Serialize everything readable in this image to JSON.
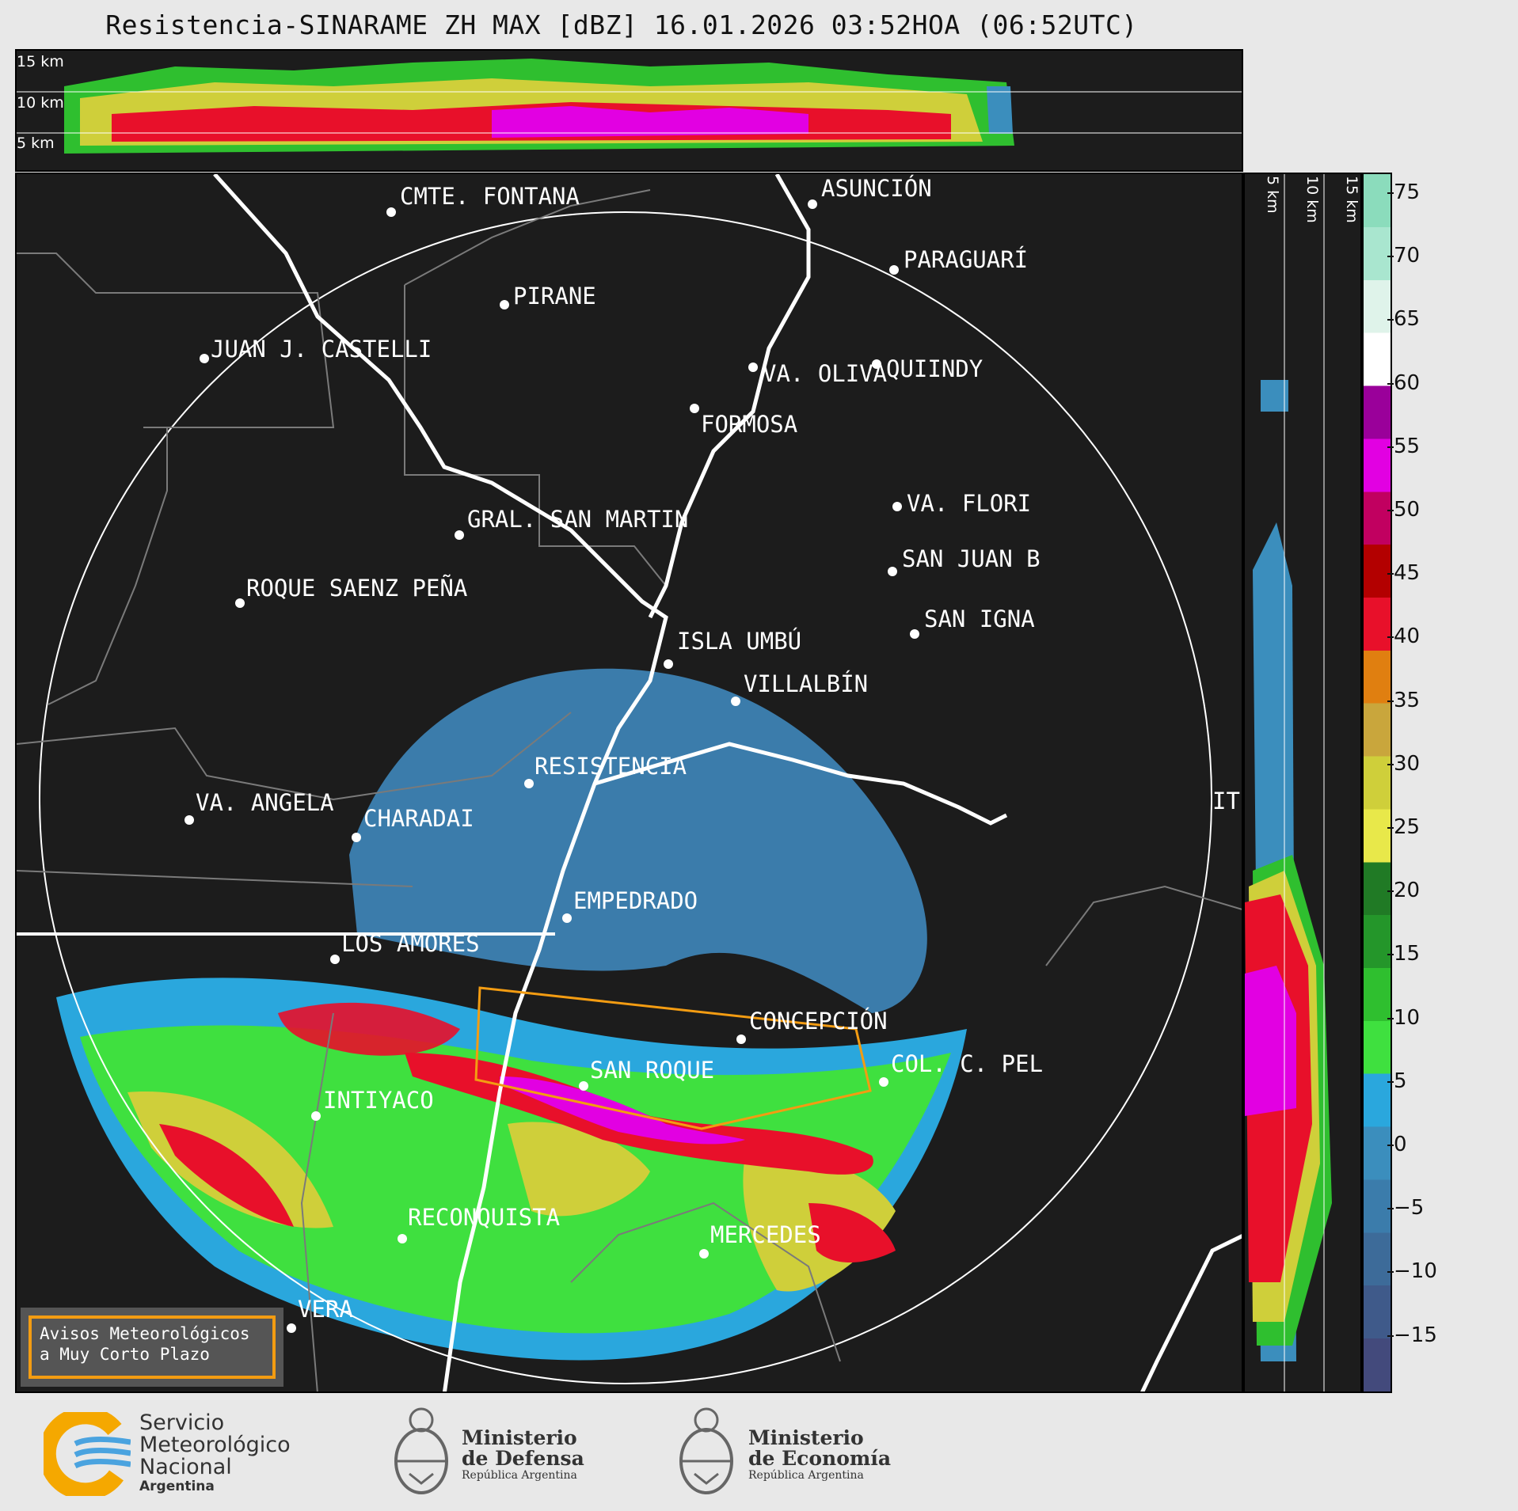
{
  "title": "Resistencia-SINARAME ZH MAX [dBZ] 16.01.2026 03:52HOA (06:52UTC)",
  "top_section": {
    "labels": [
      "15 km",
      "10 km",
      "5 km"
    ]
  },
  "side_section": {
    "labels": [
      "5 km",
      "10 km",
      "15 km"
    ]
  },
  "colorbar": {
    "ticks": [
      "75",
      "70",
      "65",
      "60",
      "55",
      "50",
      "45",
      "40",
      "35",
      "30",
      "25",
      "20",
      "15",
      "10",
      "5",
      "0",
      "−5",
      "−10",
      "−15"
    ],
    "colors": [
      "#434a7c",
      "#3f5a8a",
      "#3d6b99",
      "#3b7cab",
      "#3b8ebd",
      "#2aa7dd",
      "#3fe03f",
      "#2fbf2f",
      "#24962a",
      "#207a25",
      "#e8e84a",
      "#cfcf3a",
      "#c9a63c",
      "#e07f10",
      "#e8102a",
      "#b30000",
      "#c10060",
      "#e200e2",
      "#9a009a",
      "#ffffff",
      "#dff3ea",
      "#a9e6cf",
      "#8bdcbc"
    ],
    "palette_name": "dBZ reflectivity"
  },
  "cities": [
    {
      "name": "CMTE. FONTANA"
    },
    {
      "name": "ASUNCIÓN"
    },
    {
      "name": "PARAGUARÍ"
    },
    {
      "name": "PIRANE"
    },
    {
      "name": "JUAN J. CASTELLI"
    },
    {
      "name": "VA. OLIVA"
    },
    {
      "name": "QUIINDY"
    },
    {
      "name": "FORMOSA"
    },
    {
      "name": "VA. FLORI"
    },
    {
      "name": "GRAL. SAN MARTIN"
    },
    {
      "name": "SAN JUAN B"
    },
    {
      "name": "ROQUE SAENZ PEÑA"
    },
    {
      "name": "SAN IGNA"
    },
    {
      "name": "ISLA UMBÚ"
    },
    {
      "name": "VILLALBÍN"
    },
    {
      "name": "RESISTENCIA"
    },
    {
      "name": "IT"
    },
    {
      "name": "VA. ANGELA"
    },
    {
      "name": "CHARADAI"
    },
    {
      "name": "EMPEDRADO"
    },
    {
      "name": "LOS AMORES"
    },
    {
      "name": "CONCEPCIÓN"
    },
    {
      "name": "COL. C. PEL"
    },
    {
      "name": "SAN ROQUE"
    },
    {
      "name": "INTIYACO"
    },
    {
      "name": "RECONQUISTA"
    },
    {
      "name": "MERCEDES"
    },
    {
      "name": "VERA"
    }
  ],
  "warning_box": {
    "line1": "Avisos Meteorológicos",
    "line2": "a Muy Corto Plazo"
  },
  "footer": {
    "smn_line1": "Servicio",
    "smn_line2": "Meteorológico",
    "smn_line3": "Nacional",
    "smn_line4": "Argentina",
    "def_line1": "Ministerio",
    "def_line2": "de Defensa",
    "def_line3": "República Argentina",
    "eco_line1": "Ministerio",
    "eco_line2": "de Economía",
    "eco_line3": "República Argentina"
  }
}
